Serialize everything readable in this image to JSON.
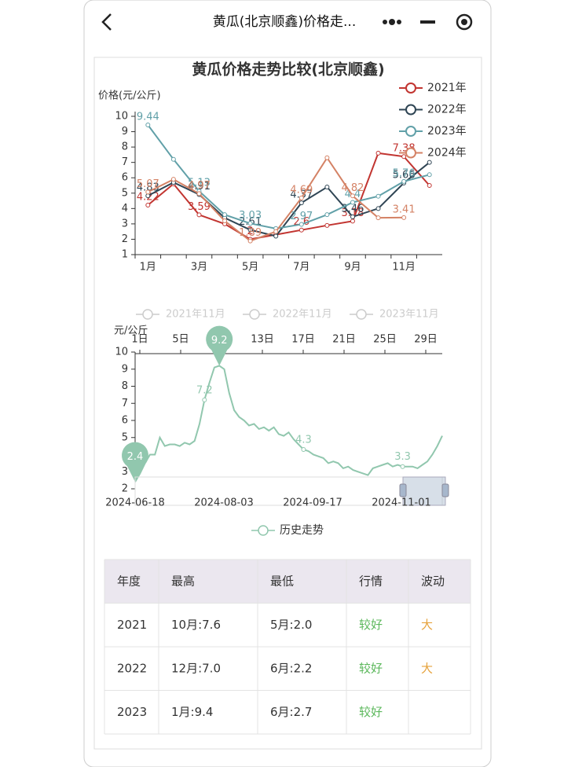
{
  "header": {
    "title": "黄瓜(北京顺鑫)价格走..."
  },
  "chart_data": [
    {
      "type": "line",
      "title": "黄瓜价格走势比较(北京顺鑫)",
      "y_label": "价格(元/公斤)",
      "categories": [
        "1月",
        null,
        "3月",
        null,
        "5月",
        null,
        "7月",
        null,
        "9月",
        null,
        "11月",
        null
      ],
      "ylim": [
        1,
        10
      ],
      "yticks": [
        1,
        2,
        3,
        4,
        5,
        6,
        7,
        8,
        9,
        10
      ],
      "legend": "top-right",
      "series": [
        {
          "name": "2021年",
          "color": "#c23531",
          "values": [
            4.22,
            5.6,
            3.59,
            3.0,
            2,
            2.3,
            2.6,
            2.9,
            3.18,
            7.6,
            7.38,
            5.5
          ]
        },
        {
          "name": "2022年",
          "color": "#2f4554",
          "values": [
            4.83,
            5.7,
            4.91,
            3.4,
            2.61,
            2.2,
            4.37,
            5.4,
            3.46,
            4.0,
            5.66,
            7.0
          ]
        },
        {
          "name": "2023年",
          "color": "#61a0a8",
          "values": [
            9.44,
            7.2,
            5.13,
            3.6,
            3.03,
            2.7,
            2.97,
            3.6,
            4.4,
            4.8,
            5.76,
            6.2
          ]
        },
        {
          "name": "2024年",
          "color": "#d48265",
          "values": [
            5.07,
            5.9,
            4.97,
            3.2,
            1.89,
            2.5,
            4.69,
            7.3,
            4.82,
            3.4,
            3.41,
            null
          ]
        }
      ]
    },
    {
      "type": "line",
      "y_label": "元/公斤",
      "legend_inactive": [
        "2021年11月",
        "2022年11月",
        "2023年11月"
      ],
      "x_labels": [
        "1日",
        "5日",
        "9日",
        "13日",
        "17日",
        "21日",
        "25日",
        "29日"
      ],
      "ylim": [
        2,
        10
      ],
      "yticks": [
        2,
        3,
        4,
        5,
        6,
        7,
        8,
        9,
        10
      ],
      "series": [
        {
          "name": "历史走势",
          "color": "#91c7ae",
          "values": [
            2.4,
            2.9,
            3.5,
            4.0,
            4.0,
            5.0,
            4.5,
            4.6,
            4.6,
            4.5,
            4.7,
            4.6,
            4.8,
            5.8,
            7.2,
            8.2,
            9.1,
            9.2,
            9.0,
            7.6,
            6.6,
            6.2,
            6.0,
            5.7,
            5.8,
            5.5,
            5.6,
            5.4,
            5.6,
            5.2,
            5.1,
            5.3,
            4.9,
            4.6,
            4.3,
            4.2,
            4.0,
            3.9,
            3.8,
            3.5,
            3.6,
            3.5,
            3.2,
            3.3,
            3.1,
            3.0,
            2.9,
            2.8,
            3.2,
            3.3,
            3.4,
            3.5,
            3.3,
            3.4,
            3.3,
            3.3,
            3.3,
            3.2,
            3.4,
            3.6,
            4.0,
            4.5,
            5.1
          ]
        }
      ],
      "zoom_labels": [
        "2024-06-18",
        "2024-08-03",
        "2024-09-17",
        "2024-11-01"
      ]
    }
  ],
  "table": {
    "columns": [
      "年度",
      "最高",
      "最低",
      "行情",
      "波动"
    ],
    "rows": [
      [
        "2021",
        "10月:7.6",
        "5月:2.0",
        "较好",
        "大"
      ],
      [
        "2022",
        "12月:7.0",
        "6月:2.2",
        "较好",
        "大"
      ],
      [
        "2023",
        "1月:9.4",
        "6月:2.7",
        "较好",
        null
      ]
    ]
  }
}
